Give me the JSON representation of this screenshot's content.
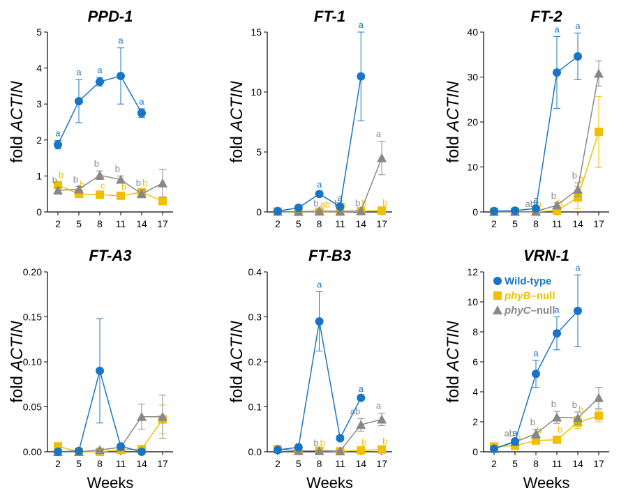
{
  "colors": {
    "wild": "#1874c6",
    "phyB": "#f0c000",
    "phyC": "#888888"
  },
  "legend": [
    {
      "key": "wild",
      "label": "Wild-type",
      "prefix": "",
      "suffix": ""
    },
    {
      "key": "phyB",
      "label": "",
      "prefix": "phyB",
      "suffix": "–null"
    },
    {
      "key": "phyC",
      "label": "",
      "prefix": "phyC",
      "suffix": "–null"
    }
  ],
  "chart_data": [
    {
      "type": "line",
      "title": "PPD-1",
      "xlabel": "",
      "ylabel_prefix": "fold ",
      "ylabel_gene": "ACTIN",
      "x": [
        2,
        5,
        8,
        11,
        14,
        17
      ],
      "ylim": [
        0,
        5
      ],
      "yticks": [
        "0",
        "1",
        "2",
        "3",
        "4",
        "5"
      ],
      "ytick_values": [
        0,
        1,
        2,
        3,
        4,
        5
      ],
      "series": [
        {
          "key": "wild",
          "x": [
            2,
            5,
            8,
            11,
            14
          ],
          "values": [
            1.87,
            3.08,
            3.62,
            3.78,
            2.75
          ],
          "err": [
            0.12,
            0.6,
            0.12,
            0.78,
            0.12
          ],
          "letters": [
            "a",
            "a",
            "a",
            "a",
            "a"
          ]
        },
        {
          "key": "phyB",
          "x": [
            2,
            5,
            8,
            11,
            14,
            17
          ],
          "values": [
            0.75,
            0.5,
            0.48,
            0.45,
            0.55,
            0.3
          ],
          "err": [
            0.08,
            0.06,
            0.05,
            0.05,
            0.06,
            0.04
          ],
          "letters": [
            "b",
            "b",
            "c",
            "b",
            "b",
            ""
          ]
        },
        {
          "key": "phyC",
          "x": [
            2,
            5,
            8,
            11,
            14,
            17
          ],
          "values": [
            0.6,
            0.63,
            1.02,
            0.9,
            0.5,
            0.8
          ],
          "err": [
            0.08,
            0.08,
            0.12,
            0.1,
            0.1,
            0.38
          ],
          "letters": [
            "b",
            "b",
            "b",
            "b",
            "b",
            ""
          ]
        }
      ]
    },
    {
      "type": "line",
      "title": "FT-1",
      "xlabel": "",
      "ylabel_prefix": "fold ",
      "ylabel_gene": "ACTIN",
      "x": [
        2,
        5,
        8,
        11,
        14,
        17
      ],
      "ylim": [
        0,
        15
      ],
      "yticks": [
        "0",
        "5",
        "10",
        "15"
      ],
      "ytick_values": [
        0,
        5,
        10,
        15
      ],
      "series": [
        {
          "key": "wild",
          "x": [
            2,
            5,
            8,
            11,
            14
          ],
          "values": [
            0.07,
            0.35,
            1.5,
            0.45,
            11.3
          ],
          "err": [
            0.05,
            0.05,
            0.2,
            0.1,
            3.7
          ],
          "letters": [
            "",
            "",
            "a",
            "a",
            "a"
          ]
        },
        {
          "key": "phyB",
          "x": [
            2,
            5,
            8,
            11,
            14,
            17
          ],
          "values": [
            0.03,
            0.02,
            0.02,
            0.02,
            0.05,
            0.12
          ],
          "err": [
            0.02,
            0.02,
            0.02,
            0.02,
            0.03,
            0.05
          ],
          "letters": [
            "",
            "",
            "ab",
            "b",
            "b",
            "b"
          ]
        },
        {
          "key": "phyC",
          "x": [
            2,
            5,
            8,
            11,
            14,
            17
          ],
          "values": [
            0.03,
            0.02,
            0.08,
            0.05,
            0.1,
            4.5
          ],
          "err": [
            0.02,
            0.02,
            0.05,
            0.05,
            0.05,
            1.4
          ],
          "letters": [
            "",
            "",
            "b",
            "b",
            "b",
            "a"
          ]
        }
      ]
    },
    {
      "type": "line",
      "title": "FT-2",
      "xlabel": "",
      "ylabel_prefix": "fold ",
      "ylabel_gene": "ACTIN",
      "x": [
        2,
        5,
        8,
        11,
        14,
        17
      ],
      "ylim": [
        0,
        40
      ],
      "yticks": [
        "0",
        "10",
        "20",
        "30",
        "40"
      ],
      "ytick_values": [
        0,
        10,
        20,
        30,
        40
      ],
      "series": [
        {
          "key": "wild",
          "x": [
            2,
            5,
            8,
            11,
            14
          ],
          "values": [
            0.2,
            0.3,
            0.8,
            31,
            34.6
          ],
          "err": [
            0.1,
            0.1,
            0.3,
            8,
            5.2
          ],
          "letters": [
            "",
            "",
            "a",
            "a",
            "a"
          ]
        },
        {
          "key": "phyB",
          "x": [
            2,
            5,
            8,
            11,
            14,
            17
          ],
          "values": [
            0.05,
            0.05,
            0.05,
            0.3,
            3.2,
            17.8
          ],
          "err": [
            0.05,
            0.05,
            0.05,
            0.1,
            2.5,
            7.9
          ],
          "letters": [
            "",
            "",
            "b",
            "b",
            "b",
            ""
          ]
        },
        {
          "key": "phyC",
          "x": [
            2,
            5,
            8,
            11,
            14,
            17
          ],
          "values": [
            0.05,
            0.05,
            0.1,
            1.5,
            5,
            30.8
          ],
          "err": [
            0.05,
            0.05,
            0.05,
            0.5,
            1.5,
            2.8
          ],
          "letters": [
            "",
            "",
            "ab",
            "b",
            "b",
            ""
          ]
        }
      ]
    },
    {
      "type": "line",
      "title": "FT-A3",
      "xlabel": "Weeks",
      "ylabel_prefix": "fold ",
      "ylabel_gene": "ACTIN",
      "x": [
        2,
        5,
        8,
        11,
        14,
        17
      ],
      "ylim": [
        0,
        0.2
      ],
      "yticks": [
        "0.00",
        "0.05",
        "0.10",
        "0.15",
        "0.20"
      ],
      "ytick_values": [
        0,
        0.05,
        0.1,
        0.15,
        0.2
      ],
      "series": [
        {
          "key": "wild",
          "x": [
            2,
            5,
            8,
            11,
            14
          ],
          "values": [
            0.0,
            0.001,
            0.09,
            0.006,
            0.0
          ],
          "err": [
            0.001,
            0.001,
            0.058,
            0.002,
            0.001
          ],
          "letters": [
            "",
            "",
            "",
            "",
            ""
          ]
        },
        {
          "key": "phyB",
          "x": [
            2,
            5,
            8,
            11,
            14,
            17
          ],
          "values": [
            0.006,
            0.0,
            0.0,
            0.002,
            0.003,
            0.036
          ],
          "err": [
            0.002,
            0.001,
            0.001,
            0.001,
            0.002,
            0.016
          ],
          "letters": [
            "",
            "",
            "",
            "",
            "",
            ""
          ]
        },
        {
          "key": "phyC",
          "x": [
            2,
            5,
            8,
            11,
            14,
            17
          ],
          "values": [
            0.0,
            0.0,
            0.002,
            0.005,
            0.039,
            0.039
          ],
          "err": [
            0.001,
            0.001,
            0.001,
            0.002,
            0.014,
            0.024
          ],
          "letters": [
            "",
            "",
            "",
            "",
            "",
            ""
          ]
        }
      ]
    },
    {
      "type": "line",
      "title": "FT-B3",
      "xlabel": "Weeks",
      "ylabel_prefix": "fold ",
      "ylabel_gene": "ACTIN",
      "x": [
        2,
        5,
        8,
        11,
        14,
        17
      ],
      "ylim": [
        0,
        0.4
      ],
      "yticks": [
        "0.0",
        "0.1",
        "0.2",
        "0.3",
        "0.4"
      ],
      "ytick_values": [
        0,
        0.1,
        0.2,
        0.3,
        0.4
      ],
      "series": [
        {
          "key": "wild",
          "x": [
            2,
            5,
            8,
            11,
            14
          ],
          "values": [
            0.004,
            0.01,
            0.29,
            0.03,
            0.12
          ],
          "err": [
            0.002,
            0.003,
            0.066,
            0.006,
            0.004
          ],
          "letters": [
            "",
            "",
            "a",
            "",
            "a"
          ]
        },
        {
          "key": "phyB",
          "x": [
            2,
            5,
            8,
            11,
            14,
            17
          ],
          "values": [
            0.006,
            0.002,
            0.002,
            0.001,
            0.003,
            0.005
          ],
          "err": [
            0.002,
            0.001,
            0.001,
            0.001,
            0.002,
            0.002
          ],
          "letters": [
            "",
            "",
            "b",
            "",
            "b",
            "b"
          ]
        },
        {
          "key": "phyC",
          "x": [
            2,
            5,
            8,
            11,
            14,
            17
          ],
          "values": [
            0.006,
            0.002,
            0.002,
            0.002,
            0.06,
            0.072
          ],
          "err": [
            0.002,
            0.001,
            0.001,
            0.001,
            0.014,
            0.014
          ],
          "letters": [
            "",
            "",
            "b",
            "",
            "ab",
            "a"
          ]
        }
      ]
    },
    {
      "type": "line",
      "title": "VRN-1",
      "xlabel": "Weeks",
      "ylabel_prefix": "fold ",
      "ylabel_gene": "ACTIN",
      "x": [
        2,
        5,
        8,
        11,
        14,
        17
      ],
      "ylim": [
        0,
        12
      ],
      "yticks": [
        "0",
        "2",
        "4",
        "6",
        "8",
        "10",
        "12"
      ],
      "ytick_values": [
        0,
        2,
        4,
        6,
        8,
        10,
        12
      ],
      "legend_position": "top-left",
      "series": [
        {
          "key": "wild",
          "x": [
            2,
            5,
            8,
            11,
            14
          ],
          "values": [
            0.2,
            0.7,
            5.2,
            7.9,
            9.4
          ],
          "err": [
            0.05,
            0.1,
            0.9,
            1.1,
            2.4
          ],
          "letters": [
            "",
            "a",
            "a",
            "a",
            "a"
          ]
        },
        {
          "key": "phyB",
          "x": [
            2,
            5,
            8,
            11,
            14,
            17
          ],
          "values": [
            0.35,
            0.4,
            0.75,
            0.8,
            1.95,
            2.4
          ],
          "err": [
            0.1,
            0.1,
            0.2,
            0.2,
            0.4,
            0.4
          ],
          "letters": [
            "",
            "b",
            "b",
            "b",
            "b",
            ""
          ]
        },
        {
          "key": "phyC",
          "x": [
            2,
            5,
            8,
            11,
            14,
            17
          ],
          "values": [
            0.2,
            0.65,
            1.2,
            2.3,
            2.25,
            3.6
          ],
          "err": [
            0.05,
            0.1,
            0.3,
            0.4,
            0.4,
            0.7
          ],
          "letters": [
            "",
            "ab",
            "b",
            "b",
            "b",
            ""
          ]
        }
      ]
    }
  ]
}
